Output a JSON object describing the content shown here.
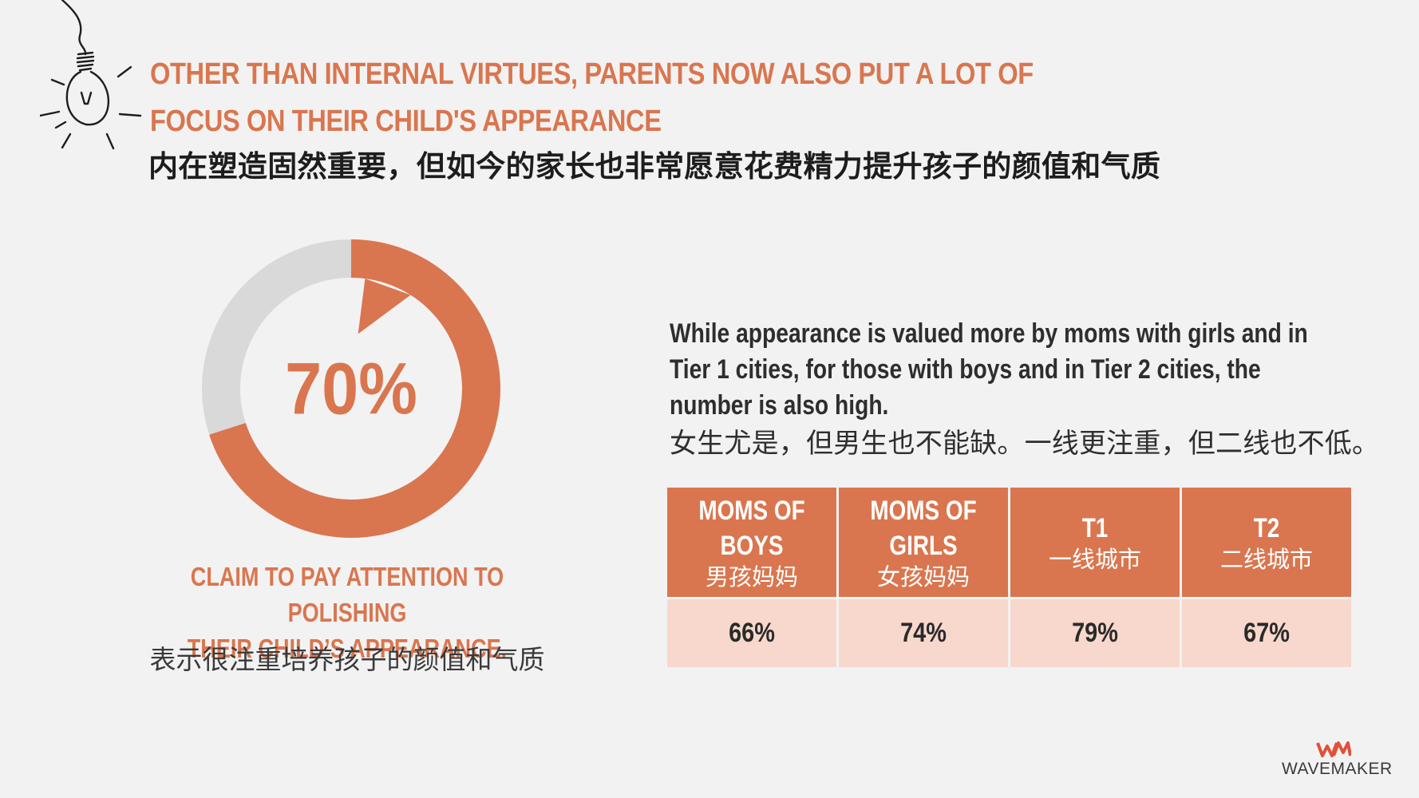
{
  "header": {
    "title_en_line1": "OTHER THAN INTERNAL VIRTUES, PARENTS NOW ALSO PUT A LOT OF",
    "title_en_line2": "FOCUS ON THEIR CHILD'S APPEARANCE",
    "title_zh": "内在塑造固然重要，但如今的家长也非常愿意花费精力提升孩子的颜值和气质"
  },
  "chart_data": {
    "type": "pie",
    "center_label": "70%",
    "values": [
      70,
      30
    ],
    "colors": [
      "#d9764f",
      "#d9d9d9"
    ]
  },
  "claim": {
    "line1": "CLAIM TO PAY ATTENTION TO POLISHING",
    "line2": "THEIR CHILD’S APPEARANCE.",
    "zh": "表示很注重培养孩子的颜值和气质"
  },
  "description": {
    "line1": "While appearance is valued more by moms with girls and in",
    "line2": "Tier 1 cities, for those with boys and in Tier 2 cities, the",
    "line3": "number is also high.",
    "zh": "女生尤是，但男生也不能缺。一线更注重，但二线也不低。"
  },
  "table": {
    "columns": [
      {
        "en": "MOMS OF\nBOYS",
        "zh": "男孩妈妈",
        "value": "66%"
      },
      {
        "en": "MOMS OF\nGIRLS",
        "zh": "女孩妈妈",
        "value": "74%"
      },
      {
        "en": "T1",
        "zh": "一线城市",
        "value": "79%"
      },
      {
        "en": "T2",
        "zh": "二线城市",
        "value": "67%"
      }
    ]
  },
  "logo": {
    "text": "WAVEMAKER",
    "mark": "WM"
  },
  "colors": {
    "accent": "#d9764f",
    "light": "#f8d8cc",
    "track": "#d9d9d9"
  }
}
